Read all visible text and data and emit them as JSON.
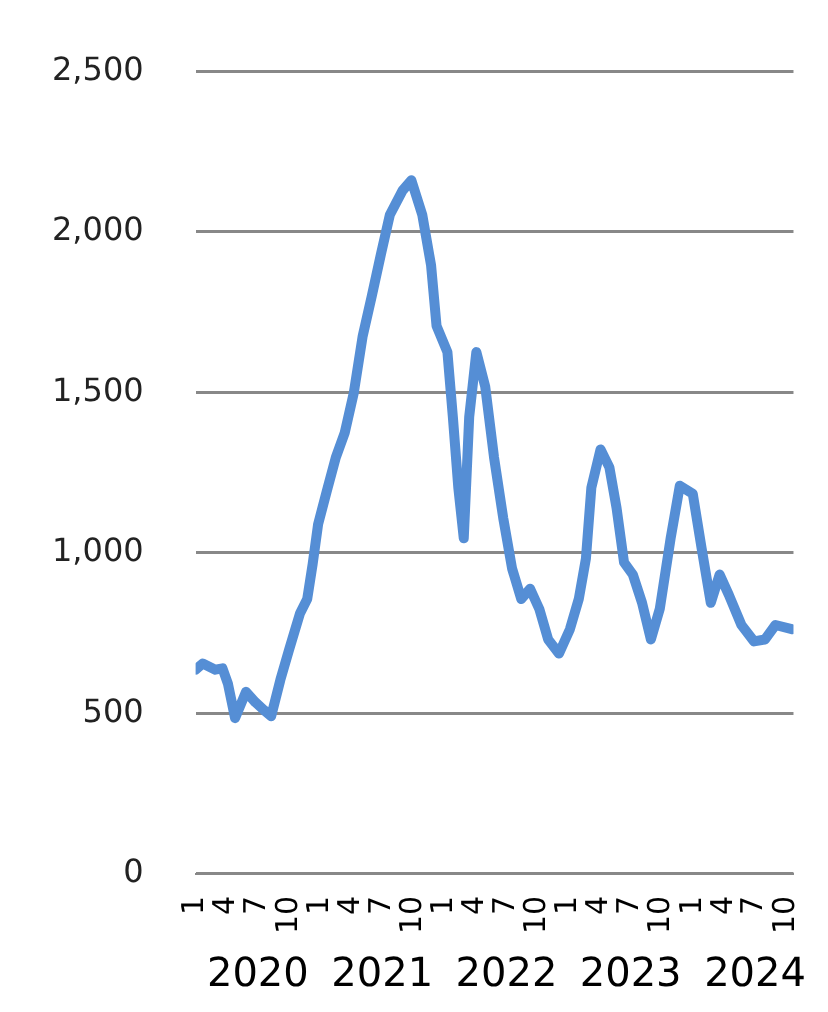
{
  "chart_data": {
    "type": "line",
    "x": [
      "2020-01-01",
      "2020-01-22",
      "2020-02-28",
      "2020-03-20",
      "2020-04-05",
      "2020-04-26",
      "2020-05-28",
      "2020-06-24",
      "2020-07-20",
      "2020-08-10",
      "2020-09-06",
      "2020-10-02",
      "2020-11-03",
      "2020-11-24",
      "2020-12-10",
      "2020-12-26",
      "2021-01-20",
      "2021-02-16",
      "2021-03-14",
      "2021-04-10",
      "2021-05-06",
      "2021-06-02",
      "2021-06-28",
      "2021-07-25",
      "2021-08-31",
      "2021-09-26",
      "2021-10-28",
      "2021-11-23",
      "2021-12-09",
      "2022-01-10",
      "2022-01-26",
      "2022-02-11",
      "2022-02-27",
      "2022-03-15",
      "2022-04-05",
      "2022-05-01",
      "2022-05-27",
      "2022-06-23",
      "2022-07-19",
      "2022-08-15",
      "2022-09-10",
      "2022-10-07",
      "2022-11-02",
      "2022-12-04",
      "2023-01-05",
      "2023-01-31",
      "2023-02-21",
      "2023-03-09",
      "2023-04-05",
      "2023-05-01",
      "2023-05-22",
      "2023-06-13",
      "2023-07-09",
      "2023-08-05",
      "2023-08-31",
      "2023-09-26",
      "2023-10-28",
      "2023-11-24",
      "2024-01-01",
      "2024-01-27",
      "2024-02-23",
      "2024-03-20",
      "2024-04-16",
      "2024-05-23",
      "2024-06-29",
      "2024-07-31",
      "2024-08-31",
      "2024-10-18"
    ],
    "series": [
      {
        "color": "#558ed5",
        "values": [
          636,
          655,
          636,
          640,
          592,
          485,
          567,
          535,
          510,
          491,
          604,
          699,
          812,
          856,
          965,
          1089,
          1190,
          1297,
          1373,
          1499,
          1675,
          1801,
          1927,
          2053,
          2128,
          2160,
          2053,
          1895,
          1707,
          1625,
          1423,
          1203,
          1045,
          1423,
          1625,
          1518,
          1297,
          1108,
          951,
          856,
          888,
          825,
          730,
          686,
          762,
          856,
          982,
          1203,
          1322,
          1266,
          1140,
          970,
          932,
          844,
          730,
          825,
          1045,
          1209,
          1184,
          1014,
          844,
          932,
          869,
          775,
          724,
          730,
          775,
          762
        ]
      }
    ],
    "ylim": [
      0,
      2500
    ],
    "yticks": [
      {
        "value": 0,
        "label": "0"
      },
      {
        "value": 500,
        "label": "500"
      },
      {
        "value": 1000,
        "label": "1,000"
      },
      {
        "value": 1500,
        "label": "1,500"
      },
      {
        "value": 2000,
        "label": "2,000"
      },
      {
        "value": 2500,
        "label": "2,500"
      }
    ],
    "xlim": [
      "2020-01-01",
      "2024-10-23"
    ],
    "xticks": [
      {
        "value": "2020-01-01",
        "label": "1"
      },
      {
        "value": "2020-04-01",
        "label": "4"
      },
      {
        "value": "2020-07-01",
        "label": "7"
      },
      {
        "value": "2020-10-01",
        "label": "10"
      },
      {
        "value": "2021-01-01",
        "label": "1"
      },
      {
        "value": "2021-04-01",
        "label": "4"
      },
      {
        "value": "2021-07-01",
        "label": "7"
      },
      {
        "value": "2021-10-01",
        "label": "10"
      },
      {
        "value": "2022-01-01",
        "label": "1"
      },
      {
        "value": "2022-04-01",
        "label": "4"
      },
      {
        "value": "2022-07-01",
        "label": "7"
      },
      {
        "value": "2022-10-01",
        "label": "10"
      },
      {
        "value": "2023-01-01",
        "label": "1"
      },
      {
        "value": "2023-04-01",
        "label": "4"
      },
      {
        "value": "2023-07-01",
        "label": "7"
      },
      {
        "value": "2023-10-01",
        "label": "10"
      },
      {
        "value": "2024-01-01",
        "label": "1"
      },
      {
        "value": "2024-04-01",
        "label": "4"
      },
      {
        "value": "2024-07-01",
        "label": "7"
      },
      {
        "value": "2024-10-01",
        "label": "10"
      }
    ],
    "annotations": [
      "2020",
      "2021",
      "2022",
      "2023",
      "2024"
    ],
    "grid": "y",
    "legend": false,
    "marker": "none",
    "line_style": "solid"
  }
}
